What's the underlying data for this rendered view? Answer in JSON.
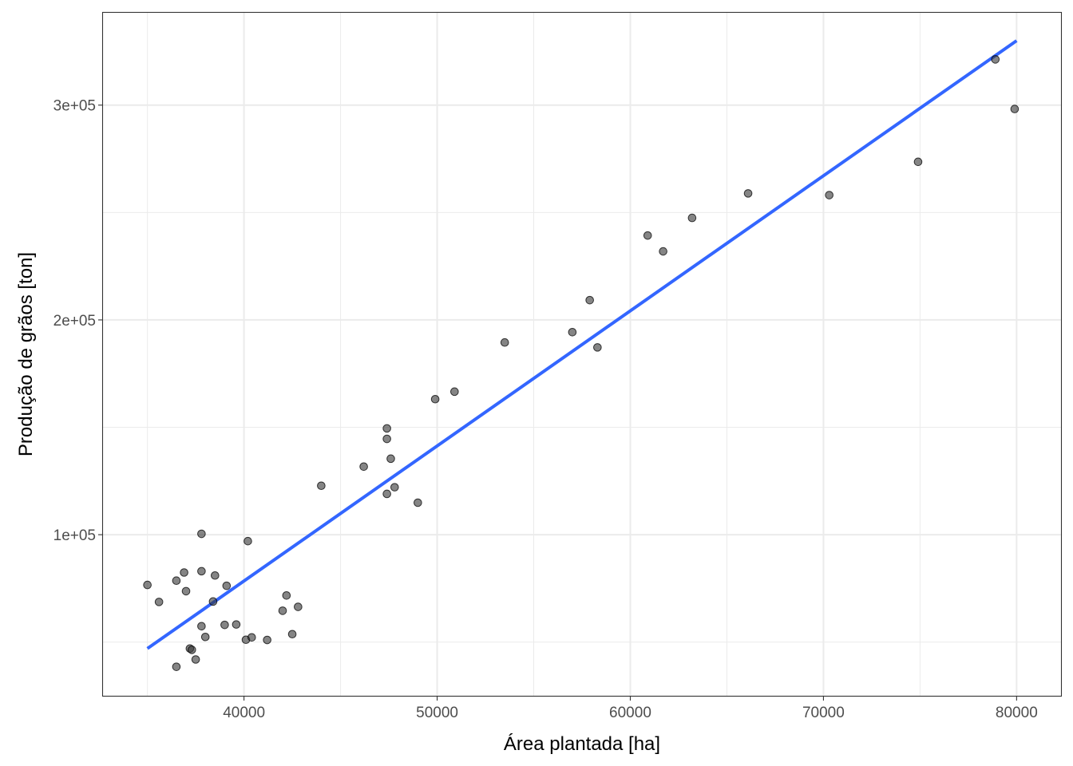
{
  "chart_data": {
    "type": "scatter",
    "title": "",
    "xlabel": "Área plantada [ha]",
    "ylabel": "Produção de grãos [ton]",
    "xlim": [
      32700,
      82300
    ],
    "ylim": [
      25000,
      343000
    ],
    "x_ticks": [
      40000,
      50000,
      60000,
      70000,
      80000
    ],
    "x_tick_labels": [
      "40000",
      "50000",
      "60000",
      "70000",
      "80000"
    ],
    "y_ticks": [
      100000,
      200000,
      300000
    ],
    "y_tick_labels": [
      "1e+05",
      "2e+05",
      "3e+05"
    ],
    "grid": true,
    "legend": "none",
    "colors": {
      "points": "#333333",
      "fit_line": "#3366ff",
      "grid": "#ebebeb",
      "panel_border": "#333333"
    },
    "points": [
      [
        35000,
        76600
      ],
      [
        35600,
        68700
      ],
      [
        36500,
        78600
      ],
      [
        36500,
        38500
      ],
      [
        36900,
        82400
      ],
      [
        37000,
        73700
      ],
      [
        37200,
        47000
      ],
      [
        37300,
        46400
      ],
      [
        37500,
        41900
      ],
      [
        37800,
        57400
      ],
      [
        37800,
        100400
      ],
      [
        37800,
        83000
      ],
      [
        38000,
        52400
      ],
      [
        38400,
        68900
      ],
      [
        38500,
        81000
      ],
      [
        39000,
        58000
      ],
      [
        39100,
        76200
      ],
      [
        39600,
        58200
      ],
      [
        40100,
        51100
      ],
      [
        40200,
        97000
      ],
      [
        40400,
        52200
      ],
      [
        41200,
        51000
      ],
      [
        42000,
        64600
      ],
      [
        42200,
        71700
      ],
      [
        42500,
        53700
      ],
      [
        42800,
        66400
      ],
      [
        44000,
        122800
      ],
      [
        46200,
        131700
      ],
      [
        47400,
        149500
      ],
      [
        47400,
        144600
      ],
      [
        47400,
        119000
      ],
      [
        47600,
        135400
      ],
      [
        47800,
        122100
      ],
      [
        49000,
        114900
      ],
      [
        49900,
        163100
      ],
      [
        50900,
        166600
      ],
      [
        53500,
        189500
      ],
      [
        57000,
        194300
      ],
      [
        57900,
        209200
      ],
      [
        58300,
        187200
      ],
      [
        60900,
        239300
      ],
      [
        61700,
        231900
      ],
      [
        63200,
        247500
      ],
      [
        66100,
        258900
      ],
      [
        70300,
        258100
      ],
      [
        74900,
        273600
      ],
      [
        78900,
        321300
      ],
      [
        79900,
        298200
      ]
    ],
    "fit_line": {
      "x": [
        35000,
        80000
      ],
      "y": [
        47000,
        330000
      ]
    }
  }
}
